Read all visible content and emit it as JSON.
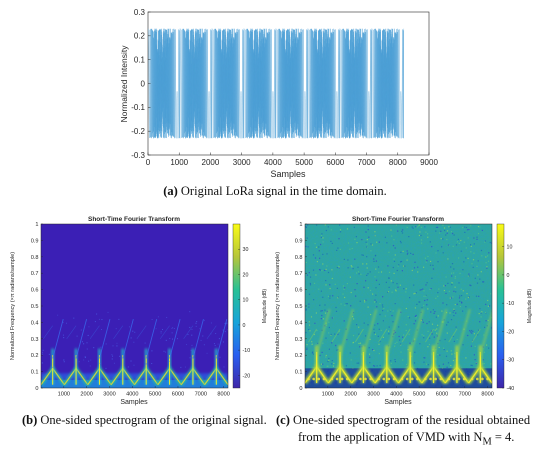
{
  "chart_data": [
    {
      "panel": "a",
      "type": "line",
      "title": "",
      "xlabel": "Samples",
      "ylabel": "Normalized Intensity",
      "xlim": [
        0,
        9000
      ],
      "ylim": [
        -0.3,
        0.3
      ],
      "xticks": [
        "0",
        "1000",
        "2000",
        "3000",
        "4000",
        "5000",
        "6000",
        "7000",
        "8000",
        "9000"
      ],
      "yticks": [
        "0.3",
        "0.2",
        "0.1",
        "0",
        "-0.1",
        "-0.2",
        "-0.3"
      ],
      "signal": {
        "amplitude": 0.23,
        "sample_count": 8192,
        "chirp_count": 8,
        "samples_per_chirp": 1024,
        "color": "#4d9fd6"
      },
      "caption_label": "(a)",
      "caption_text": " Original LoRa signal in the time domain."
    },
    {
      "panel": "b",
      "type": "heatmap",
      "title": "Short-Time Fourier Transform",
      "xlabel": "Samples",
      "ylabel": "Normalized Frequency (×π radians/sample)",
      "xlim": [
        0,
        8192
      ],
      "ylim": [
        0,
        1
      ],
      "xticks": [
        "1000",
        "2000",
        "3000",
        "4000",
        "5000",
        "6000",
        "7000",
        "8000"
      ],
      "yticks": [
        "0",
        "0.1",
        "0.2",
        "0.3",
        "0.4",
        "0.5",
        "0.6",
        "0.7",
        "0.8",
        "0.9",
        "1"
      ],
      "colorbar": {
        "label": "Magnitude (dB)",
        "range": [
          -25,
          40
        ],
        "ticks": [
          "30",
          "20",
          "10",
          "0",
          "-10",
          "-20"
        ]
      },
      "background_color": "#3b1fb5",
      "chirp_count": 8,
      "caption_label": "(b)",
      "caption_text": " One-sided spectrogram of the original signal."
    },
    {
      "panel": "c",
      "type": "heatmap",
      "title": "Short-Time Fourier Transform",
      "xlabel": "Samples",
      "ylabel": "Normalized Frequency (×π radians/sample)",
      "xlim": [
        0,
        8192
      ],
      "ylim": [
        0,
        1
      ],
      "xticks": [
        "1000",
        "2000",
        "3000",
        "4000",
        "5000",
        "6000",
        "7000",
        "8000"
      ],
      "yticks": [
        "0",
        "0.1",
        "0.2",
        "0.3",
        "0.4",
        "0.5",
        "0.6",
        "0.7",
        "0.8",
        "0.9",
        "1"
      ],
      "colorbar": {
        "label": "Magnitude (dB)",
        "range": [
          -40,
          18
        ],
        "ticks": [
          "10",
          "0",
          "-10",
          "-20",
          "-30",
          "-40"
        ]
      },
      "background_color": "#2fa6a0",
      "chirp_count": 8,
      "caption_label": "(c)",
      "caption_text_line1": " One-sided spectrogram of the residual obtained",
      "caption_text_line2": "from the application of VMD with N",
      "caption_sub": "M",
      "caption_tail": " = 4."
    }
  ]
}
